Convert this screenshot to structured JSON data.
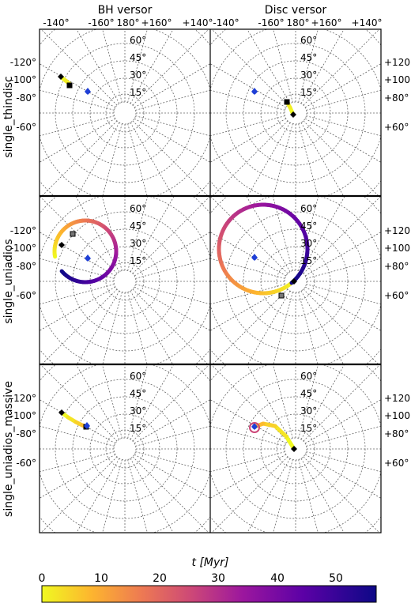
{
  "figure": {
    "columns": [
      "BH versor",
      "Disc versor"
    ],
    "rows": [
      "single_thindisc",
      "single_uniadios",
      "single_uniadios_massive"
    ],
    "top_ticks": [
      "-140°",
      "-160°",
      "180°",
      "+160°",
      "+140°"
    ],
    "left_ticks": [
      "-120°",
      "-100°",
      "-80°",
      "-60°"
    ],
    "right_ticks": [
      "+120°",
      "+100°",
      "+80°",
      "+60°"
    ],
    "lat_labels": [
      "60°",
      "45°",
      "30°",
      "15°"
    ],
    "colorbar": {
      "label": "t [Myr]",
      "ticks": [
        "0",
        "10",
        "20",
        "30",
        "40",
        "50"
      ],
      "min": 0,
      "max": 56
    }
  },
  "chart_data": [
    {
      "type": "scatter",
      "row": "single_thindisc",
      "column": "BH versor",
      "x_label": "longitude",
      "y_label": "latitude",
      "start": {
        "lon": -118,
        "lat": 22
      },
      "end": {
        "lon": -112,
        "lat": 18
      },
      "marker": {
        "lon": -135,
        "lat": 24
      },
      "track": {
        "t_range": [
          0,
          3
        ]
      }
    },
    {
      "type": "scatter",
      "row": "single_thindisc",
      "column": "Disc versor",
      "start": {
        "lon": 115,
        "lat": 3
      },
      "end": {
        "lon": 145,
        "lat": 6
      },
      "marker": {
        "lon": -135,
        "lat": 24
      },
      "track": {
        "t_range": [
          0,
          3
        ]
      }
    },
    {
      "type": "scatter",
      "row": "single_uniadios",
      "column": "BH versor",
      "start": {
        "lon": -118,
        "lat": 22
      },
      "end": {
        "lon": -146,
        "lat": 31
      },
      "marker": {
        "lon": -130,
        "lat": 17
      },
      "track": {
        "t_range": [
          0,
          56
        ]
      }
    },
    {
      "type": "scatter",
      "row": "single_uniadios",
      "column": "Disc versor",
      "start": {
        "lon": 115,
        "lat": 3
      },
      "end": {
        "lon": 60,
        "lat": 14
      },
      "marker": {
        "lon": -128,
        "lat": 16
      },
      "track": {
        "t_range": [
          0,
          56
        ]
      }
    },
    {
      "type": "scatter",
      "row": "single_uniadios_massive",
      "column": "BH versor",
      "start": {
        "lon": -118,
        "lat": 22
      },
      "end": {
        "lon": -140,
        "lat": 17
      },
      "marker": {
        "lon": -140,
        "lat": 17
      },
      "track": {
        "t_range": [
          0,
          10
        ]
      }
    },
    {
      "type": "scatter",
      "row": "single_uniadios_massive",
      "column": "Disc versor",
      "start": {
        "lon": 115,
        "lat": 3
      },
      "end": {
        "lon": -125,
        "lat": 20
      },
      "marker": {
        "lon": -125,
        "lat": 20
      },
      "track": {
        "t_range": [
          0,
          10
        ]
      }
    }
  ]
}
